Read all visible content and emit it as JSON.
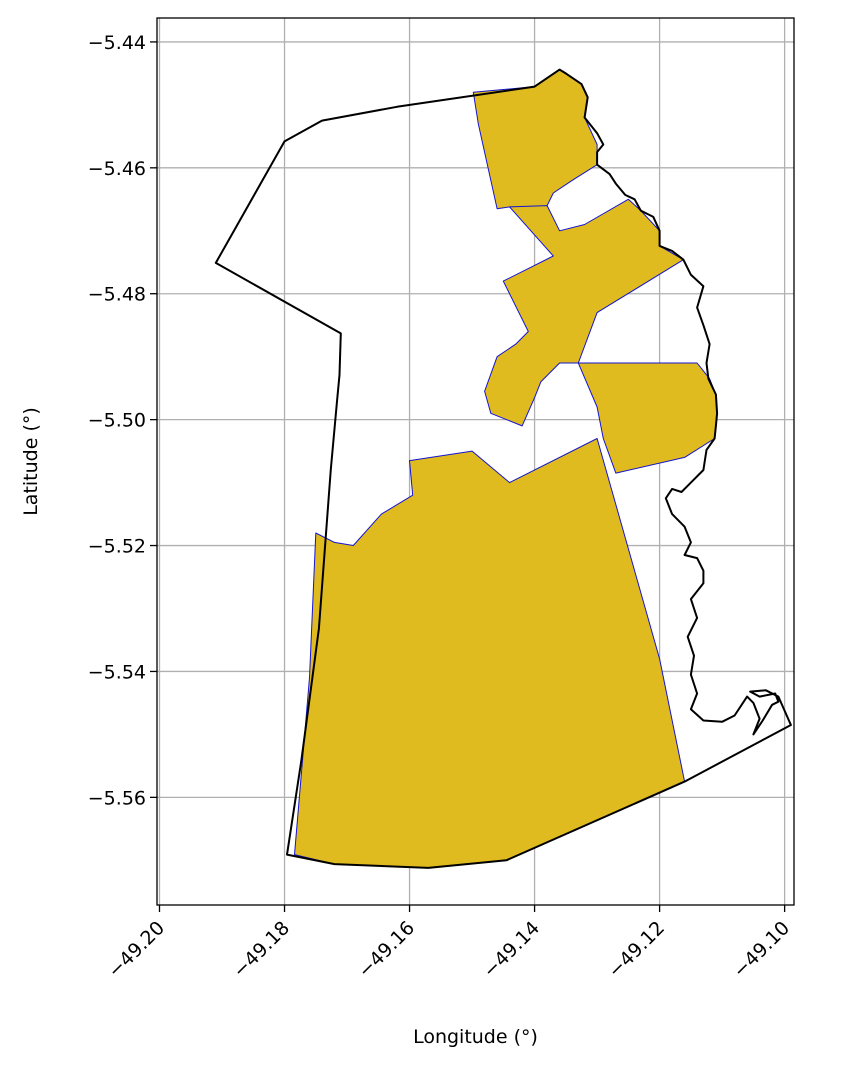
{
  "chart_data": {
    "type": "map",
    "xlabel": "Longitude (°)",
    "ylabel": "Latitude (°)",
    "xlim": [
      -49.2004,
      -49.0985
    ],
    "ylim": [
      -5.5771,
      -5.4362
    ],
    "xticks": [
      {
        "value": -49.2,
        "label": "−49.20"
      },
      {
        "value": -49.18,
        "label": "−49.18"
      },
      {
        "value": -49.16,
        "label": "−49.16"
      },
      {
        "value": -49.14,
        "label": "−49.14"
      },
      {
        "value": -49.12,
        "label": "−49.12"
      },
      {
        "value": -49.1,
        "label": "−49.10"
      }
    ],
    "yticks": [
      {
        "value": -5.44,
        "label": "−5.44"
      },
      {
        "value": -5.46,
        "label": "−5.46"
      },
      {
        "value": -5.48,
        "label": "−5.48"
      },
      {
        "value": -5.5,
        "label": "−5.50"
      },
      {
        "value": -5.52,
        "label": "−5.52"
      },
      {
        "value": -5.54,
        "label": "−5.54"
      },
      {
        "value": -5.56,
        "label": "−5.56"
      }
    ],
    "grid": true,
    "colors": {
      "boundary": "#000000",
      "fill": "#dfbb20",
      "region_edge": "#1515cf",
      "grid": "#b0b0b0"
    },
    "boundary": [
      [
        -49.1796,
        -5.5691
      ],
      [
        -49.1773,
        -5.5541
      ],
      [
        -49.1745,
        -5.5332
      ],
      [
        -49.1726,
        -5.5079
      ],
      [
        -49.1716,
        -5.4971
      ],
      [
        -49.1712,
        -5.4929
      ],
      [
        -49.171,
        -5.4863
      ],
      [
        -49.191,
        -5.4751
      ],
      [
        -49.18,
        -5.4558
      ],
      [
        -49.174,
        -5.4525
      ],
      [
        -49.162,
        -5.4503
      ],
      [
        -49.14,
        -5.4471
      ],
      [
        -49.136,
        -5.4444
      ],
      [
        -49.135,
        -5.445
      ],
      [
        -49.1325,
        -5.4467
      ],
      [
        -49.1315,
        -5.4488
      ],
      [
        -49.132,
        -5.452
      ],
      [
        -49.13,
        -5.4545
      ],
      [
        -49.129,
        -5.4563
      ],
      [
        -49.13,
        -5.4575
      ],
      [
        -49.13,
        -5.4595
      ],
      [
        -49.128,
        -5.461
      ],
      [
        -49.127,
        -5.4625
      ],
      [
        -49.1255,
        -5.4643
      ],
      [
        -49.124,
        -5.465
      ],
      [
        -49.123,
        -5.4668
      ],
      [
        -49.121,
        -5.4678
      ],
      [
        -49.12,
        -5.47
      ],
      [
        -49.12,
        -5.4724
      ],
      [
        -49.118,
        -5.4732
      ],
      [
        -49.1162,
        -5.4746
      ],
      [
        -49.115,
        -5.477
      ],
      [
        -49.113,
        -5.4788
      ],
      [
        -49.114,
        -5.4822
      ],
      [
        -49.113,
        -5.485
      ],
      [
        -49.112,
        -5.488
      ],
      [
        -49.1125,
        -5.491
      ],
      [
        -49.1122,
        -5.4935
      ],
      [
        -49.111,
        -5.496
      ],
      [
        -49.1108,
        -5.499
      ],
      [
        -49.111,
        -5.501
      ],
      [
        -49.1112,
        -5.503
      ],
      [
        -49.1125,
        -5.5048
      ],
      [
        -49.113,
        -5.508
      ],
      [
        -49.115,
        -5.51
      ],
      [
        -49.1165,
        -5.5115
      ],
      [
        -49.118,
        -5.511
      ],
      [
        -49.119,
        -5.5125
      ],
      [
        -49.118,
        -5.515
      ],
      [
        -49.116,
        -5.517
      ],
      [
        -49.115,
        -5.5195
      ],
      [
        -49.116,
        -5.5215
      ],
      [
        -49.114,
        -5.522
      ],
      [
        -49.113,
        -5.524
      ],
      [
        -49.113,
        -5.526
      ],
      [
        -49.115,
        -5.5285
      ],
      [
        -49.114,
        -5.5315
      ],
      [
        -49.1155,
        -5.5345
      ],
      [
        -49.1145,
        -5.5375
      ],
      [
        -49.115,
        -5.5405
      ],
      [
        -49.114,
        -5.5435
      ],
      [
        -49.115,
        -5.546
      ],
      [
        -49.113,
        -5.5478
      ],
      [
        -49.11,
        -5.548
      ],
      [
        -49.108,
        -5.547
      ],
      [
        -49.106,
        -5.544
      ],
      [
        -49.105,
        -5.545
      ],
      [
        -49.104,
        -5.5475
      ],
      [
        -49.105,
        -5.55
      ],
      [
        -49.1035,
        -5.5478
      ],
      [
        -49.102,
        -5.5453
      ],
      [
        -49.101,
        -5.5448
      ],
      [
        -49.1015,
        -5.5435
      ],
      [
        -49.104,
        -5.544
      ],
      [
        -49.1055,
        -5.5432
      ],
      [
        -49.103,
        -5.543
      ],
      [
        -49.101,
        -5.544
      ],
      [
        -49.099,
        -5.5485
      ],
      [
        -49.116,
        -5.5575
      ],
      [
        -49.1445,
        -5.57
      ],
      [
        -49.157,
        -5.5712
      ],
      [
        -49.172,
        -5.5706
      ],
      [
        -49.1796,
        -5.5691
      ]
    ],
    "regions": [
      [
        [
          -49.1784,
          -5.5691
        ],
        [
          -49.176,
          -5.541
        ],
        [
          -49.175,
          -5.518
        ],
        [
          -49.172,
          -5.5195
        ],
        [
          -49.169,
          -5.52
        ],
        [
          -49.1645,
          -5.515
        ],
        [
          -49.1595,
          -5.512
        ],
        [
          -49.16,
          -5.5065
        ],
        [
          -49.15,
          -5.505
        ],
        [
          -49.144,
          -5.51
        ],
        [
          -49.13,
          -5.503
        ],
        [
          -49.12,
          -5.538
        ],
        [
          -49.116,
          -5.5575
        ],
        [
          -49.1445,
          -5.57
        ],
        [
          -49.157,
          -5.5712
        ],
        [
          -49.172,
          -5.5706
        ],
        [
          -49.1784,
          -5.5691
        ]
      ],
      [
        [
          -49.1498,
          -5.448
        ],
        [
          -49.14,
          -5.4471
        ],
        [
          -49.136,
          -5.4444
        ],
        [
          -49.1325,
          -5.4467
        ],
        [
          -49.1315,
          -5.4488
        ],
        [
          -49.132,
          -5.452
        ],
        [
          -49.13,
          -5.4563
        ],
        [
          -49.13,
          -5.4595
        ],
        [
          -49.134,
          -5.462
        ],
        [
          -49.137,
          -5.464
        ],
        [
          -49.138,
          -5.466
        ],
        [
          -49.142,
          -5.467
        ],
        [
          -49.144,
          -5.4662
        ],
        [
          -49.146,
          -5.4665
        ],
        [
          -49.149,
          -5.453
        ],
        [
          -49.1498,
          -5.448
        ]
      ],
      [
        [
          -49.144,
          -5.4662
        ],
        [
          -49.138,
          -5.466
        ],
        [
          -49.136,
          -5.47
        ],
        [
          -49.132,
          -5.469
        ],
        [
          -49.125,
          -5.465
        ],
        [
          -49.123,
          -5.4668
        ],
        [
          -49.12,
          -5.47
        ],
        [
          -49.12,
          -5.4724
        ],
        [
          -49.1162,
          -5.4746
        ],
        [
          -49.13,
          -5.483
        ],
        [
          -49.133,
          -5.491
        ],
        [
          -49.136,
          -5.491
        ],
        [
          -49.139,
          -5.494
        ],
        [
          -49.14,
          -5.4965
        ],
        [
          -49.142,
          -5.501
        ],
        [
          -49.147,
          -5.499
        ],
        [
          -49.148,
          -5.4955
        ],
        [
          -49.146,
          -5.49
        ],
        [
          -49.143,
          -5.488
        ],
        [
          -49.141,
          -5.486
        ],
        [
          -49.145,
          -5.478
        ],
        [
          -49.141,
          -5.476
        ],
        [
          -49.137,
          -5.474
        ],
        [
          -49.144,
          -5.4662
        ]
      ],
      [
        [
          -49.133,
          -5.491
        ],
        [
          -49.114,
          -5.491
        ],
        [
          -49.112,
          -5.4935
        ],
        [
          -49.111,
          -5.496
        ],
        [
          -49.1108,
          -5.499
        ],
        [
          -49.1112,
          -5.503
        ],
        [
          -49.116,
          -5.506
        ],
        [
          -49.127,
          -5.5085
        ],
        [
          -49.129,
          -5.503
        ],
        [
          -49.13,
          -5.498
        ],
        [
          -49.133,
          -5.491
        ]
      ]
    ]
  }
}
